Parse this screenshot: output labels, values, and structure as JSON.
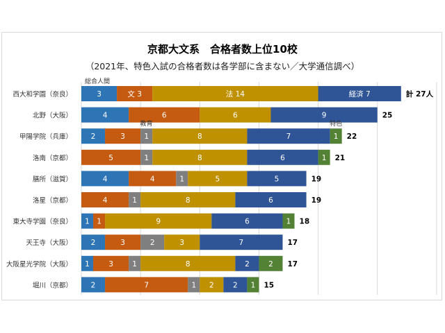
{
  "chart_data": {
    "type": "bar",
    "orientation": "horizontal",
    "stacked": true,
    "title": "京都大文系　合格者数上位10校",
    "subtitle": "（2021年、特色入試の合格者数は各学部に含まない／大学通信調べ）",
    "categories": [
      "西大和学園（奈良）",
      "北野（大阪）",
      "甲陽学院（兵庫）",
      "洛南（京都）",
      "膳所（滋賀）",
      "洛星（京都）",
      "東大寺学園（奈良）",
      "天王寺（大阪）",
      "大阪星光学院（大阪）",
      "堀川（京都）"
    ],
    "series": [
      {
        "name": "総合人間",
        "color": "#2e75b6",
        "values": [
          3,
          4,
          2,
          0,
          4,
          0,
          1,
          2,
          1,
          2
        ]
      },
      {
        "name": "文",
        "color": "#c55a11",
        "values": [
          3,
          6,
          3,
          5,
          4,
          4,
          1,
          3,
          3,
          7
        ]
      },
      {
        "name": "教育",
        "color": "#7f7f7f",
        "values": [
          0,
          0,
          1,
          1,
          1,
          1,
          0,
          2,
          1,
          1
        ]
      },
      {
        "name": "法",
        "color": "#bf9000",
        "values": [
          14,
          6,
          8,
          8,
          5,
          8,
          9,
          3,
          8,
          2
        ]
      },
      {
        "name": "経済",
        "color": "#2f5597",
        "values": [
          7,
          9,
          7,
          6,
          5,
          6,
          6,
          7,
          2,
          2
        ]
      },
      {
        "name": "特色",
        "color": "#548235",
        "values": [
          0,
          0,
          1,
          1,
          0,
          0,
          1,
          0,
          2,
          1
        ]
      }
    ],
    "totals": [
      "計 27人",
      "25",
      "22",
      "21",
      "19",
      "19",
      "18",
      "17",
      "17",
      "15"
    ],
    "first_row_segment_labels": [
      "3",
      "文 3",
      "",
      "法 14",
      "経済 7",
      ""
    ],
    "xlim": [
      0,
      30
    ],
    "grid": true,
    "gridline_step": 5
  }
}
